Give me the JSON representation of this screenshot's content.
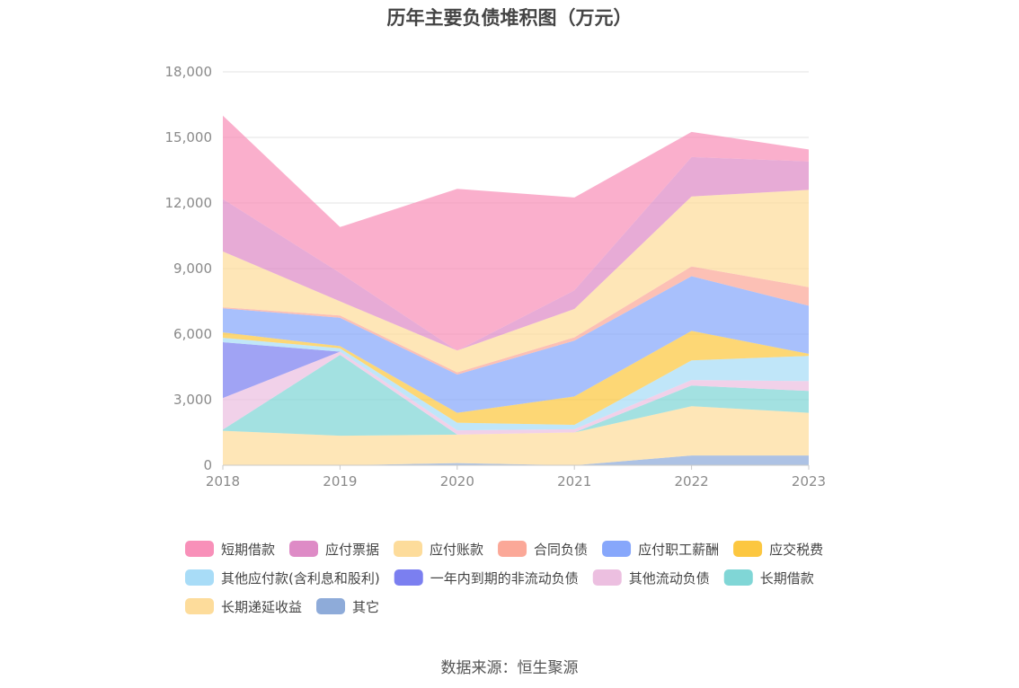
{
  "title": "历年主要负债堆积图（万元）",
  "source": "数据来源：恒生聚源",
  "chart_data": {
    "type": "area",
    "stacked": true,
    "title": "历年主要负债堆积图（万元）",
    "categories": [
      "2018",
      "2019",
      "2020",
      "2021",
      "2022",
      "2023"
    ],
    "ylim": [
      0,
      18000
    ],
    "yticks": [
      0,
      3000,
      6000,
      9000,
      12000,
      15000,
      18000
    ],
    "ytick_labels": [
      "0",
      "3,000",
      "6,000",
      "9,000",
      "12,000",
      "15,000",
      "18,000"
    ],
    "grid": true,
    "legend_position": "bottom",
    "series": [
      {
        "name": "其它",
        "color": "#8eabd9",
        "values": [
          0,
          0,
          100,
          0,
          450,
          450
        ]
      },
      {
        "name": "长期递延收益",
        "color": "#fddc9b",
        "values": [
          1580,
          1350,
          1300,
          1500,
          2250,
          1950
        ]
      },
      {
        "name": "长期借款",
        "color": "#80d6d6",
        "values": [
          50,
          3700,
          0,
          0,
          950,
          1000
        ]
      },
      {
        "name": "其他流动负债",
        "color": "#ecbfe0",
        "values": [
          1450,
          150,
          200,
          150,
          250,
          450
        ]
      },
      {
        "name": "一年内到期的非流动负债",
        "color": "#7b7ff0",
        "values": [
          2550,
          0,
          0,
          0,
          0,
          0
        ]
      },
      {
        "name": "其他应付款(含利息和股利)",
        "color": "#a8dcf7",
        "values": [
          200,
          150,
          350,
          200,
          900,
          1150
        ]
      },
      {
        "name": "应交税费",
        "color": "#fcc740",
        "values": [
          250,
          100,
          450,
          1300,
          1350,
          100
        ]
      },
      {
        "name": "应付职工薪酬",
        "color": "#87a7fb",
        "values": [
          1100,
          1300,
          1750,
          2550,
          2500,
          2200
        ]
      },
      {
        "name": "合同负债",
        "color": "#fba898",
        "values": [
          50,
          100,
          100,
          150,
          450,
          850
        ]
      },
      {
        "name": "应付账款",
        "color": "#fddc9b",
        "values": [
          2550,
          650,
          1000,
          1300,
          3200,
          4450
        ]
      },
      {
        "name": "应付票据",
        "color": "#de8bc6",
        "values": [
          2400,
          1300,
          0,
          850,
          1800,
          1300
        ]
      },
      {
        "name": "短期借款",
        "color": "#f890b9",
        "values": [
          3820,
          2100,
          7400,
          4250,
          1150,
          550
        ]
      }
    ],
    "legend_order": [
      "短期借款",
      "应付票据",
      "应付账款",
      "合同负债",
      "应付职工薪酬",
      "应交税费",
      "其他应付款(含利息和股利)",
      "一年内到期的非流动负债",
      "其他流动负债",
      "长期借款",
      "长期递延收益",
      "其它"
    ]
  }
}
